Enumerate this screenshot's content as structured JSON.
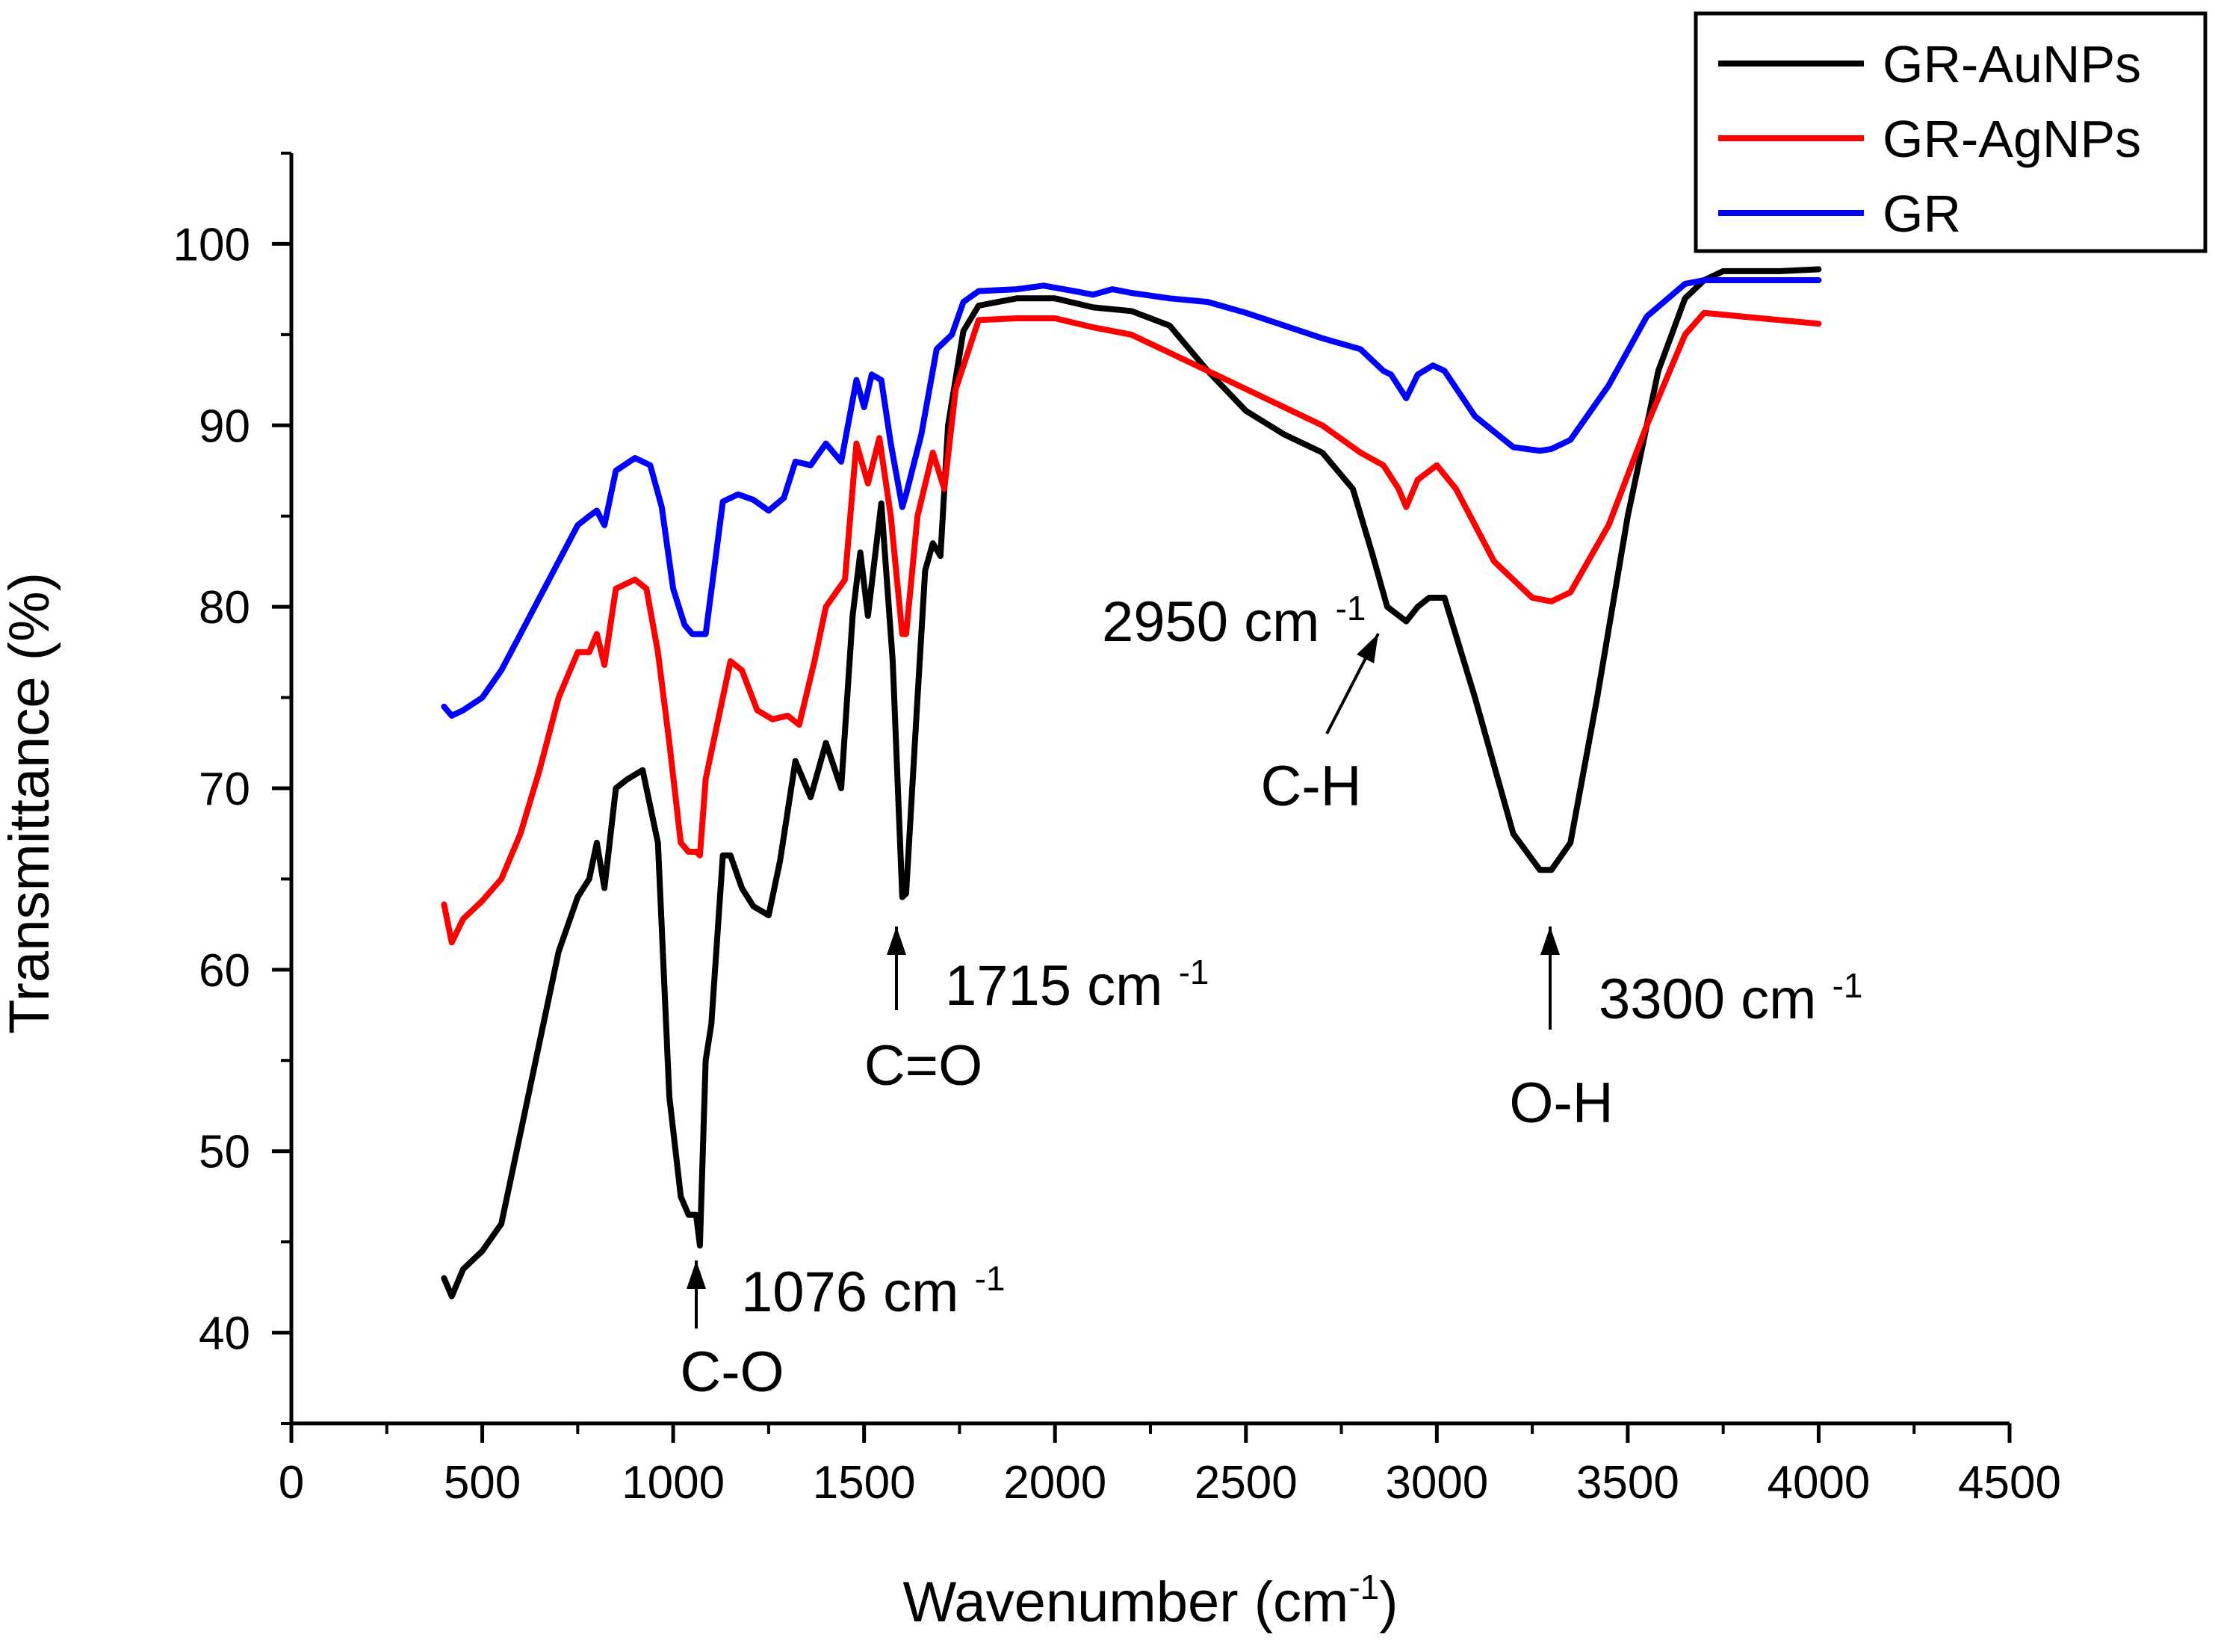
{
  "chart_data": {
    "type": "line",
    "title": "",
    "xlabel": "Wavenumber (cm",
    "xlabel_sup": "-1",
    "xlabel_tail": ")",
    "ylabel": "Transmittance (%)",
    "xlim": [
      0,
      4500
    ],
    "ylim": [
      35,
      105
    ],
    "xticks": [
      0,
      500,
      1000,
      1500,
      2000,
      2500,
      3000,
      3500,
      4000,
      4500
    ],
    "yticks": [
      40,
      50,
      60,
      70,
      80,
      90,
      100
    ],
    "legend_position": "top-right",
    "series": [
      {
        "name": "GR-AuNPs",
        "color": "#000000",
        "x": [
          400,
          420,
          450,
          500,
          550,
          600,
          650,
          700,
          750,
          780,
          800,
          820,
          850,
          880,
          920,
          960,
          990,
          1020,
          1040,
          1060,
          1070,
          1085,
          1100,
          1130,
          1150,
          1180,
          1210,
          1250,
          1280,
          1320,
          1360,
          1400,
          1440,
          1470,
          1490,
          1510,
          1545,
          1575,
          1600,
          1610,
          1640,
          1660,
          1680,
          1700,
          1720,
          1760,
          1800,
          1900,
          2000,
          2100,
          2200,
          2300,
          2400,
          2500,
          2600,
          2700,
          2780,
          2830,
          2870,
          2920,
          2950,
          2980,
          3020,
          3100,
          3200,
          3270,
          3300,
          3350,
          3420,
          3500,
          3580,
          3650,
          3700,
          3750,
          3800,
          3900,
          4000
        ],
        "y": [
          43,
          42,
          43.5,
          44.5,
          46,
          51,
          56,
          61,
          64,
          65,
          67,
          64.5,
          70,
          70.5,
          71,
          67,
          53,
          47.5,
          46.5,
          46.5,
          44.8,
          55,
          57,
          66.3,
          66.3,
          64.5,
          63.5,
          63,
          66,
          71.5,
          69.5,
          72.5,
          70,
          79.5,
          83,
          79.5,
          85.7,
          77,
          64,
          64.2,
          75,
          82,
          83.5,
          82.8,
          90,
          95.2,
          96.6,
          97,
          97,
          96.5,
          96.3,
          95.5,
          93,
          90.8,
          89.5,
          88.5,
          86.5,
          83,
          80,
          79.2,
          80,
          80.5,
          80.5,
          75,
          67.5,
          65.5,
          65.5,
          67,
          75,
          85,
          93,
          97,
          98,
          98.5,
          98.5,
          98.5,
          98.6
        ]
      },
      {
        "name": "GR-AgNPs",
        "color": "#ff0000",
        "x": [
          400,
          420,
          450,
          500,
          550,
          600,
          650,
          700,
          750,
          780,
          800,
          820,
          850,
          900,
          930,
          960,
          990,
          1020,
          1040,
          1060,
          1070,
          1085,
          1100,
          1150,
          1180,
          1220,
          1260,
          1300,
          1330,
          1370,
          1400,
          1450,
          1480,
          1510,
          1540,
          1570,
          1600,
          1610,
          1640,
          1680,
          1710,
          1740,
          1800,
          1900,
          2000,
          2100,
          2200,
          2300,
          2400,
          2500,
          2600,
          2700,
          2800,
          2860,
          2900,
          2920,
          2950,
          3000,
          3050,
          3150,
          3250,
          3300,
          3350,
          3450,
          3550,
          3650,
          3700,
          3800,
          4000
        ],
        "y": [
          63.6,
          61.5,
          62.8,
          63.8,
          65,
          67.5,
          71,
          75,
          77.5,
          77.5,
          78.5,
          76.8,
          81,
          81.5,
          81,
          77.5,
          72.5,
          67,
          66.5,
          66.5,
          66.3,
          70.5,
          72,
          77,
          76.5,
          74.3,
          73.8,
          74,
          73.5,
          77,
          80,
          81.5,
          89,
          86.8,
          89.3,
          85,
          78.5,
          78.5,
          85,
          88.5,
          86.5,
          92,
          95.8,
          95.9,
          95.9,
          95.4,
          95,
          94,
          93,
          92,
          91,
          90,
          88.5,
          87.8,
          86.5,
          85.5,
          87,
          87.8,
          86.5,
          82.5,
          80.5,
          80.3,
          80.8,
          84.5,
          90,
          95,
          96.2,
          96,
          95.6
        ]
      },
      {
        "name": "GR",
        "color": "#0000ff",
        "x": [
          400,
          420,
          450,
          500,
          550,
          600,
          650,
          700,
          750,
          780,
          800,
          820,
          850,
          900,
          940,
          970,
          1000,
          1030,
          1050,
          1070,
          1085,
          1110,
          1130,
          1170,
          1210,
          1250,
          1290,
          1320,
          1360,
          1400,
          1440,
          1480,
          1500,
          1520,
          1545,
          1570,
          1600,
          1610,
          1650,
          1690,
          1730,
          1760,
          1800,
          1900,
          1970,
          2050,
          2100,
          2150,
          2200,
          2300,
          2400,
          2500,
          2600,
          2700,
          2800,
          2860,
          2880,
          2920,
          2950,
          2990,
          3020,
          3100,
          3200,
          3270,
          3300,
          3350,
          3450,
          3550,
          3650,
          3700,
          3800,
          4000
        ],
        "y": [
          74.5,
          74,
          74.3,
          75,
          76.5,
          78.5,
          80.5,
          82.5,
          84.5,
          85,
          85.3,
          84.5,
          87.5,
          88.2,
          87.8,
          85.5,
          81,
          79,
          78.5,
          78.5,
          78.5,
          82.5,
          85.8,
          86.2,
          85.9,
          85.3,
          86,
          88,
          87.8,
          89,
          88,
          92.5,
          91,
          92.8,
          92.5,
          89,
          85.5,
          86.2,
          89.5,
          94.2,
          95,
          96.8,
          97.4,
          97.5,
          97.7,
          97.4,
          97.2,
          97.5,
          97.3,
          97,
          96.8,
          96.2,
          95.5,
          94.8,
          94.2,
          93,
          92.8,
          91.5,
          92.8,
          93.3,
          93,
          90.5,
          88.8,
          88.6,
          88.7,
          89.2,
          92.2,
          96,
          97.8,
          98,
          98,
          98
        ]
      }
    ],
    "annotations": [
      {
        "peak": "1076",
        "unit": "cm",
        "sup": "-1",
        "group": "C-O",
        "x": 1076,
        "y": 44.8
      },
      {
        "peak": "1715",
        "unit": "cm",
        "sup": "-1",
        "group": "C=O",
        "x": 1600,
        "y": 64
      },
      {
        "peak": "2950",
        "unit": "cm",
        "sup": "-1",
        "group": "C-H",
        "x": 2850,
        "y": 79.3
      },
      {
        "peak": "3300",
        "unit": "cm",
        "sup": "-1",
        "group": "O-H",
        "x": 3285,
        "y": 65.5
      }
    ]
  }
}
